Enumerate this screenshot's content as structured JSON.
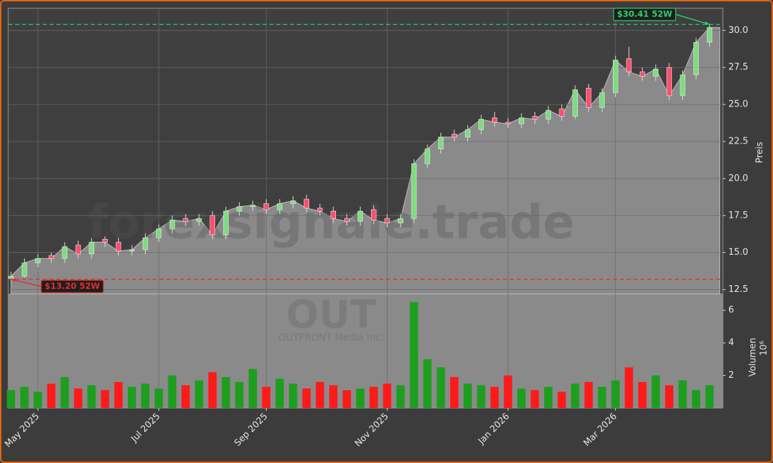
{
  "chart_data": {
    "type": "candlestick",
    "watermark": "forexsignale.trade",
    "symbol": "OUT",
    "company": "OUTFRONT Media Inc.",
    "ylabel": "Preis",
    "volume_label": "Volumen",
    "volume_offset": "10⁶",
    "up_color": "#1e9e1e",
    "down_color": "#ff1a1a",
    "area_color": "#8a8a8a",
    "grid": true,
    "categories": [
      null,
      null,
      "May 2025",
      null,
      null,
      null,
      null,
      null,
      null,
      null,
      null,
      "Jul 2025",
      null,
      null,
      null,
      null,
      null,
      null,
      null,
      "Sep 2025",
      null,
      null,
      null,
      null,
      null,
      null,
      null,
      null,
      "Nov 2025",
      null,
      null,
      null,
      null,
      null,
      null,
      null,
      null,
      "Jan 2026",
      null,
      null,
      null,
      null,
      null,
      null,
      null,
      "Mar 2026",
      null,
      null,
      null,
      null,
      null,
      null,
      null
    ],
    "open": [
      13.2,
      13.4,
      14.3,
      14.8,
      14.6,
      15.5,
      14.9,
      15.9,
      15.7,
      15.1,
      15.2,
      16.0,
      16.6,
      17.3,
      17.1,
      17.5,
      16.2,
      17.8,
      18.1,
      18.3,
      17.9,
      18.3,
      18.6,
      18.0,
      17.8,
      17.3,
      17.1,
      17.9,
      17.3,
      17.0,
      17.3,
      21.0,
      22.0,
      23.0,
      22.8,
      23.3,
      24.1,
      23.8,
      23.7,
      24.2,
      24.0,
      24.7,
      24.2,
      26.1,
      24.8,
      25.8,
      28.1,
      27.2,
      26.9,
      27.5,
      25.6,
      27.0,
      29.2
    ],
    "high": [
      13.7,
      14.6,
      14.9,
      15.0,
      15.7,
      15.8,
      16.0,
      16.1,
      16.0,
      15.5,
      16.3,
      16.9,
      17.5,
      17.6,
      17.6,
      17.8,
      18.1,
      18.4,
      18.5,
      18.6,
      18.6,
      18.8,
      18.9,
      18.3,
      18.1,
      17.6,
      18.1,
      18.2,
      17.6,
      17.6,
      21.3,
      22.3,
      23.1,
      23.3,
      23.6,
      24.3,
      24.5,
      24.1,
      24.4,
      24.5,
      24.9,
      25.0,
      26.3,
      26.4,
      26.1,
      28.3,
      28.9,
      27.5,
      27.7,
      27.8,
      27.3,
      29.5,
      30.41
    ],
    "low": [
      13.2,
      13.3,
      14.0,
      14.3,
      14.3,
      14.6,
      14.6,
      15.4,
      14.8,
      14.8,
      14.9,
      15.7,
      16.3,
      16.8,
      16.8,
      15.9,
      15.9,
      17.5,
      17.8,
      17.6,
      17.6,
      18.0,
      17.7,
      17.5,
      17.0,
      16.8,
      16.8,
      16.9,
      16.7,
      16.7,
      17.0,
      20.7,
      21.7,
      22.5,
      22.5,
      23.0,
      23.5,
      23.4,
      23.4,
      23.7,
      23.7,
      23.9,
      24.0,
      24.5,
      24.5,
      25.5,
      26.9,
      26.6,
      26.6,
      25.3,
      25.3,
      26.7,
      28.9
    ],
    "close": [
      13.4,
      14.3,
      14.6,
      14.6,
      15.4,
      14.9,
      15.7,
      15.7,
      15.1,
      15.2,
      16.0,
      16.6,
      17.2,
      17.1,
      17.3,
      16.2,
      17.8,
      18.1,
      18.2,
      17.9,
      18.3,
      18.5,
      18.0,
      17.8,
      17.3,
      17.1,
      17.8,
      17.2,
      17.0,
      17.3,
      21.0,
      22.0,
      22.8,
      22.8,
      23.3,
      24.0,
      23.8,
      23.7,
      24.1,
      24.0,
      24.6,
      24.2,
      26.0,
      24.8,
      25.8,
      28.0,
      27.2,
      26.9,
      27.4,
      25.6,
      27.0,
      29.2,
      30.2
    ],
    "volume": [
      1.1,
      1.3,
      1.0,
      1.5,
      1.9,
      1.2,
      1.4,
      1.1,
      1.6,
      1.3,
      1.5,
      1.2,
      2.0,
      1.4,
      1.7,
      2.2,
      1.9,
      1.6,
      2.4,
      1.3,
      1.8,
      1.5,
      1.2,
      1.6,
      1.4,
      1.1,
      1.2,
      1.3,
      1.5,
      1.4,
      6.5,
      3.0,
      2.5,
      1.9,
      1.5,
      1.4,
      1.3,
      2.0,
      1.2,
      1.1,
      1.3,
      1.0,
      1.5,
      1.6,
      1.3,
      1.7,
      2.5,
      1.6,
      2.0,
      1.4,
      1.7,
      1.1,
      1.4
    ],
    "ylim": [
      12.2,
      31.5
    ],
    "yticks": [
      12.5,
      {
        "value": 15,
        "label": "15.0"
      },
      17.5,
      {
        "value": 20,
        "label": "20.0"
      },
      22.5,
      {
        "value": 25,
        "label": "25.0"
      },
      27.5,
      {
        "value": 30,
        "label": "30.0"
      }
    ],
    "volume_ylim": [
      0,
      7
    ],
    "volume_yticks": [
      2,
      4,
      6
    ],
    "annotations": [
      {
        "value": 30.41,
        "label": "$30.41 52W",
        "color": "#2ecc71",
        "series": "high"
      },
      {
        "value": 13.2,
        "label": "$13.20 52W",
        "color": "#e03030",
        "series": "low"
      }
    ]
  }
}
